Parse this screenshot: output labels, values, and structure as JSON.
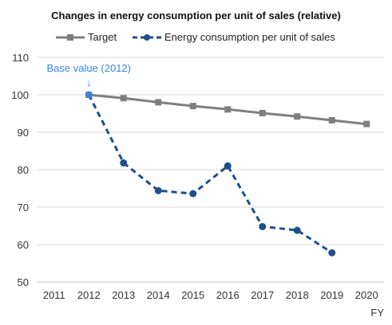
{
  "chart_data": {
    "type": "line",
    "title": "Changes in energy consumption per unit of sales (relative)",
    "xlabel": "FY",
    "ylabel": "",
    "x": [
      2011,
      2012,
      2013,
      2014,
      2015,
      2016,
      2017,
      2018,
      2019,
      2020
    ],
    "ylim": [
      50,
      110
    ],
    "yticks": [
      50,
      60,
      70,
      80,
      90,
      100,
      110
    ],
    "grid": true,
    "legend_position": "top",
    "series": [
      {
        "name": "Target",
        "style": "solid",
        "marker": "square",
        "color": "#7f7f7f",
        "x": [
          2012,
          2013,
          2014,
          2015,
          2016,
          2017,
          2018,
          2019,
          2020
        ],
        "values": [
          100,
          99.1,
          98.0,
          97.0,
          96.1,
          95.1,
          94.2,
          93.2,
          92.2
        ]
      },
      {
        "name": "Energy consumption per unit of sales",
        "style": "dashed",
        "marker": "circle",
        "color": "#1f4e8c",
        "x": [
          2012,
          2013,
          2014,
          2015,
          2016,
          2017,
          2018,
          2019
        ],
        "values": [
          100,
          81.8,
          74.4,
          73.6,
          81.0,
          64.8,
          63.8,
          57.8
        ]
      }
    ],
    "annotations": [
      {
        "text": "Base value (2012)",
        "x": 2012,
        "y": 100,
        "color": "#3a86e0"
      }
    ]
  }
}
